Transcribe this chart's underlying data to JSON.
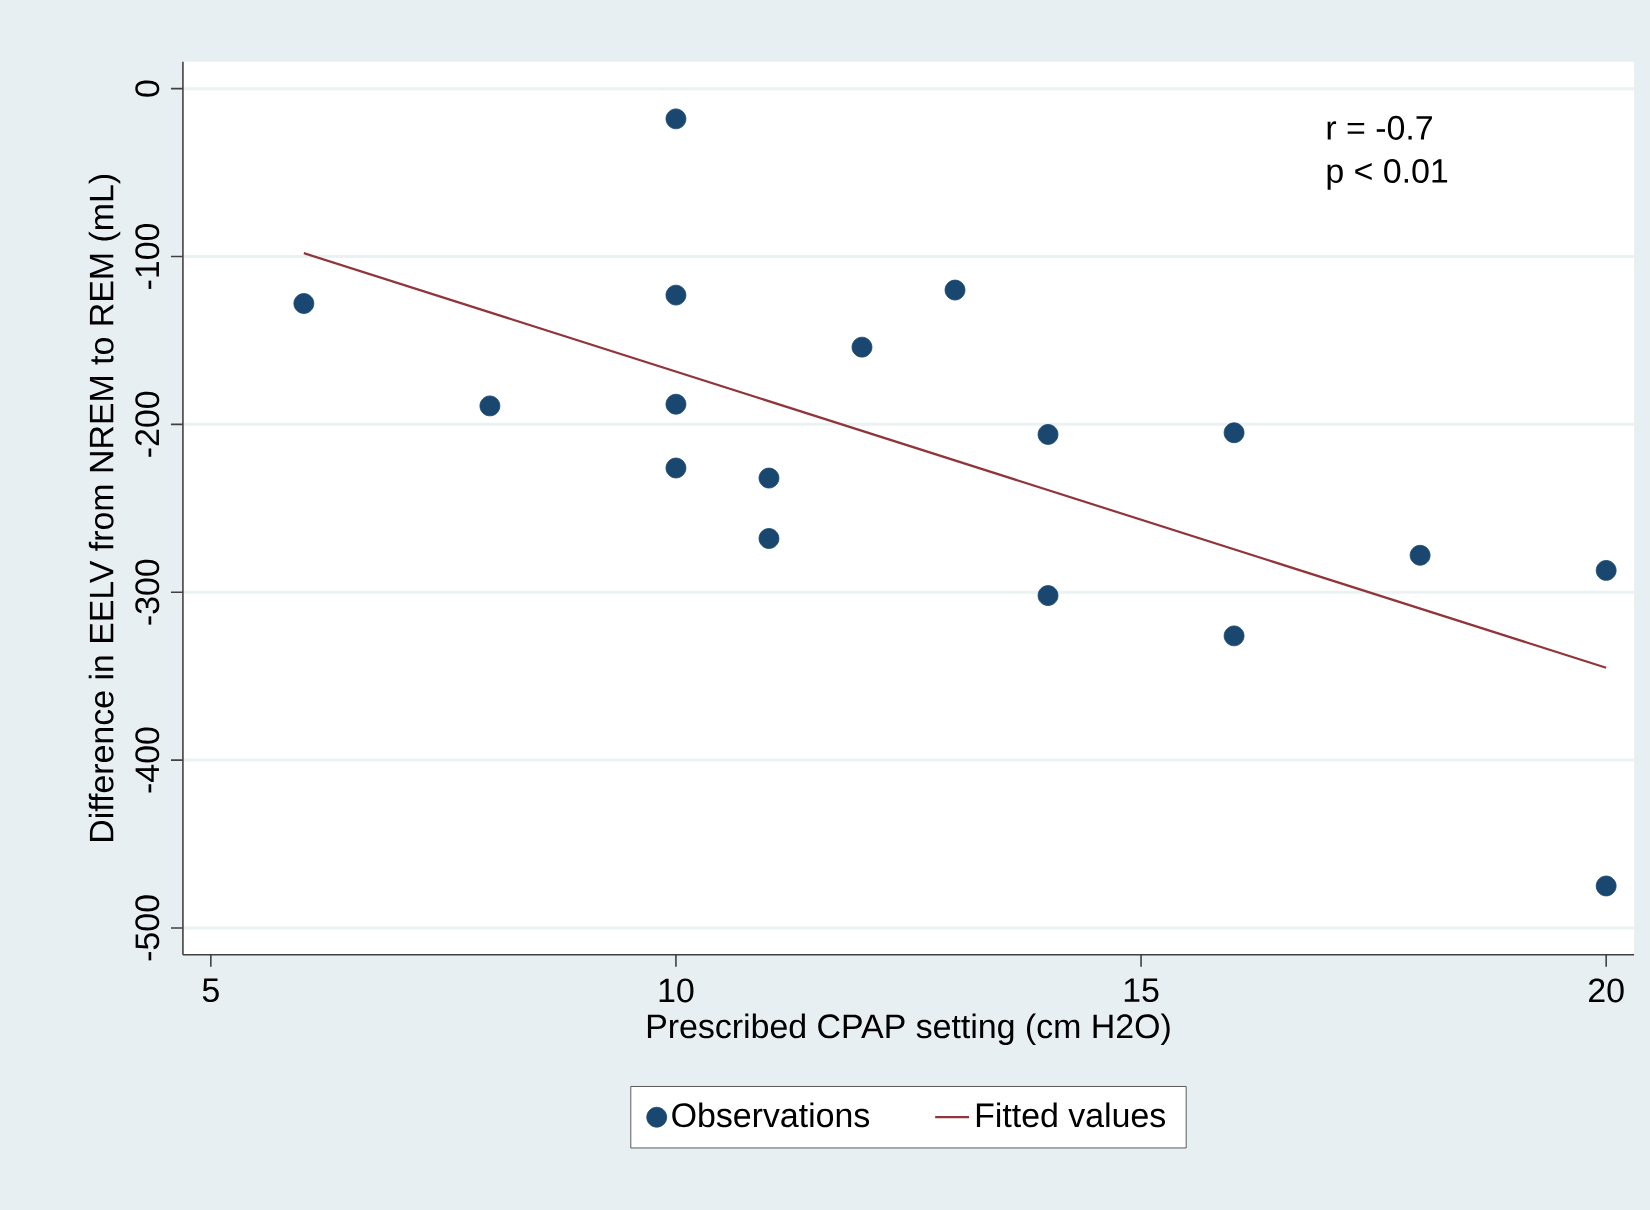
{
  "chart_data": {
    "type": "scatter",
    "xlabel": "Prescribed CPAP setting (cm H2O)",
    "ylabel": "Difference in EELV from NREM to REM (mL)",
    "annotations": [
      "r = -0.7",
      "p < 0.01"
    ],
    "xlim": [
      4.7,
      20.3
    ],
    "ylim": [
      -516,
      16
    ],
    "xticks": [
      5,
      10,
      15,
      20
    ],
    "yticks": [
      0,
      -100,
      -200,
      -300,
      -400,
      -500
    ],
    "grid": "y",
    "legend": "bottom",
    "series": [
      {
        "name": "Observations",
        "type": "scatter",
        "marker": "circle",
        "color": "#1a476f",
        "x": [
          6,
          8,
          10,
          10,
          10,
          10,
          11,
          11,
          12,
          13,
          14,
          14,
          16,
          16,
          18,
          20,
          20
        ],
        "values": [
          -128,
          -189,
          -18,
          -123,
          -188,
          -226,
          -232,
          -268,
          -154,
          -120,
          -206,
          -302,
          -205,
          -326,
          -278,
          -287,
          -475
        ]
      },
      {
        "name": "Fitted values",
        "type": "line",
        "line_style": "solid",
        "color": "#90353b",
        "x": [
          6,
          20
        ],
        "values": [
          -98,
          -345
        ]
      }
    ]
  }
}
